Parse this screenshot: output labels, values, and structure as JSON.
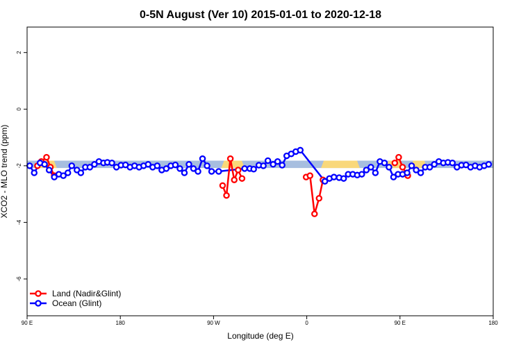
{
  "chart_data": {
    "type": "line",
    "title": "0-5N August (Ver 10)   2015-01-01 to 2020-12-18",
    "xlabel": "Longitude (deg E)",
    "ylabel": "XCO2 - MLO trend (ppm)",
    "xlim": [
      90,
      450
    ],
    "ylim": [
      -7.3,
      2.9
    ],
    "x_ticks": [
      {
        "value": 90,
        "label": "90 E"
      },
      {
        "value": 162,
        "label": "180"
      },
      {
        "value": 234,
        "label": "90 W"
      },
      {
        "value": 306,
        "label": "0"
      },
      {
        "value": 378,
        "label": "90 E"
      },
      {
        "value": 450,
        "label": "180"
      }
    ],
    "y_ticks": [
      {
        "value": 2,
        "label": "2"
      },
      {
        "value": 0,
        "label": "0"
      },
      {
        "value": -2,
        "label": "-2"
      },
      {
        "value": -4,
        "label": "-4"
      },
      {
        "value": -6,
        "label": "-6"
      }
    ],
    "legend_position": "bottom-left",
    "grid": false,
    "band": {
      "y_low": -2.08,
      "y_high": -1.82,
      "ocean_color": "#a7bedf",
      "land_color": "#f9d87a",
      "land_ranges": [
        [
          97,
          113
        ],
        [
          240,
          258
        ],
        [
          317,
          347
        ],
        [
          367,
          380
        ],
        [
          386,
          399
        ]
      ]
    },
    "series": [
      {
        "name": "Land (Nadir&Glint)",
        "color": "#ff0000",
        "segments": [
          {
            "x": [
              98,
              101,
              105,
              108,
              111
            ],
            "y": [
              -2.0,
              -1.85,
              -1.7,
              -2.05,
              -2.35
            ]
          },
          {
            "x": [
              241,
              244,
              247,
              250,
              253,
              256
            ],
            "y": [
              -2.7,
              -3.05,
              -1.75,
              -2.5,
              -2.15,
              -2.45
            ]
          },
          {
            "x": [
              305.5,
              308.5,
              312,
              315.5,
              318.5
            ],
            "y": [
              -2.4,
              -2.35,
              -3.7,
              -3.15,
              -2.5
            ]
          },
          {
            "x": [
              374,
              377,
              380,
              384
            ],
            "y": [
              -1.9,
              -1.7,
              -2.05,
              -2.35
            ]
          }
        ]
      },
      {
        "name": "Ocean (Glint)",
        "color": "#0000ff",
        "points": {
          "x": [
            92,
            95.5,
            100,
            103.5,
            107,
            111,
            114.5,
            118,
            121.5,
            124.5,
            128.5,
            131.5,
            135,
            138.5,
            142,
            145.5,
            149,
            152,
            155.5,
            159,
            162.5,
            166,
            169.5,
            173,
            176.5,
            180,
            183.5,
            187,
            190.5,
            194,
            197.5,
            201,
            204.5,
            208,
            211.5,
            215,
            218.5,
            222,
            225.5,
            229,
            232.5,
            238,
            258,
            262,
            265,
            269,
            272.5,
            276,
            280,
            283.5,
            287,
            290.5,
            294,
            297.5,
            301,
            320,
            323.5,
            327,
            331,
            334.5,
            338,
            341.5,
            345,
            348.5,
            352,
            355.5,
            359,
            362.5,
            366,
            369.5,
            373,
            376.5,
            380,
            383.5,
            387,
            390.5,
            394,
            397.5,
            401,
            404.5,
            408,
            411.5,
            415,
            418.5,
            422,
            425.5,
            429,
            432.5,
            436,
            439.5,
            443,
            446.5
          ],
          "y": [
            -2.0,
            -2.25,
            -1.9,
            -1.95,
            -2.15,
            -2.4,
            -2.3,
            -2.35,
            -2.25,
            -2.0,
            -2.15,
            -2.25,
            -2.05,
            -2.05,
            -1.95,
            -1.85,
            -1.9,
            -1.88,
            -1.9,
            -2.05,
            -1.98,
            -1.97,
            -2.05,
            -2.0,
            -2.05,
            -2.0,
            -1.95,
            -2.05,
            -2.0,
            -2.15,
            -2.1,
            -2.0,
            -1.97,
            -2.1,
            -2.25,
            -1.95,
            -2.1,
            -2.2,
            -1.75,
            -2.0,
            -2.2,
            -2.2,
            -2.1,
            -2.1,
            -2.12,
            -1.98,
            -2.0,
            -1.82,
            -1.95,
            -1.85,
            -1.98,
            -1.65,
            -1.58,
            -1.5,
            -1.45,
            -2.55,
            -2.45,
            -2.4,
            -2.42,
            -2.45,
            -2.3,
            -2.3,
            -2.33,
            -2.3,
            -2.15,
            -2.05,
            -2.25,
            -1.85,
            -1.9,
            -2.05,
            -2.4,
            -2.3,
            -2.3,
            -2.25,
            -2.0,
            -2.15,
            -2.25,
            -2.05,
            -2.05,
            -1.95,
            -1.85,
            -1.9,
            -1.88,
            -1.9,
            -2.05,
            -1.98,
            -1.97,
            -2.05,
            -2.0,
            -2.05,
            -2.0,
            -1.95
          ]
        }
      }
    ]
  }
}
